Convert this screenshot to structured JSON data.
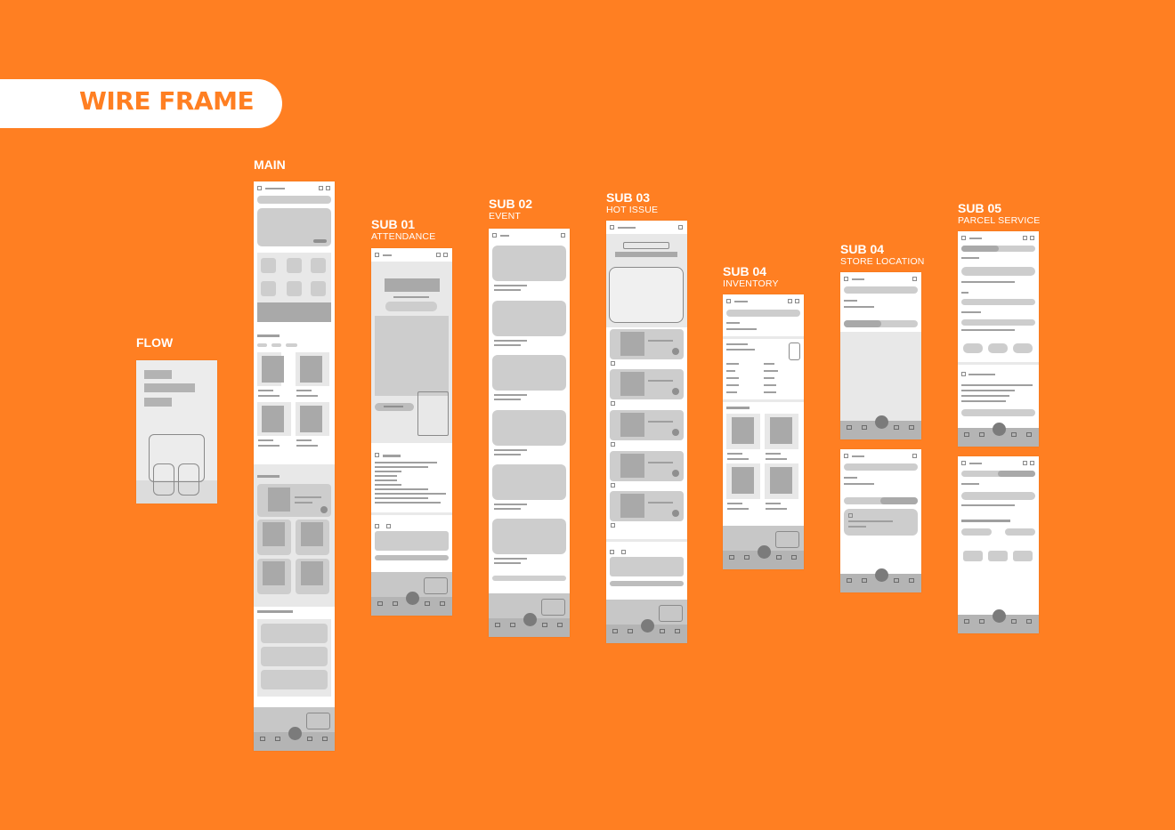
{
  "title": "WIRE FRAME",
  "colors": {
    "background": "#ff7f22",
    "accent": "#ff7f22",
    "wire_fill": "#cdcdcd",
    "wire_dark": "#8f8f8f"
  },
  "labels": {
    "flow": {
      "title": "FLOW"
    },
    "main": {
      "title": "MAIN"
    },
    "sub01": {
      "title": "SUB 01",
      "subtitle": "ATTENDANCE"
    },
    "sub02": {
      "title": "SUB 02",
      "subtitle": "EVENT"
    },
    "sub03": {
      "title": "SUB 03",
      "subtitle": "HOT ISSUE"
    },
    "sub04_inventory": {
      "title": "SUB 04",
      "subtitle": "INVENTORY"
    },
    "sub04_store": {
      "title": "SUB 04",
      "subtitle": "STORE LOCATION"
    },
    "sub05": {
      "title": "SUB 05",
      "subtitle": "PARCEL SERVICE"
    }
  }
}
